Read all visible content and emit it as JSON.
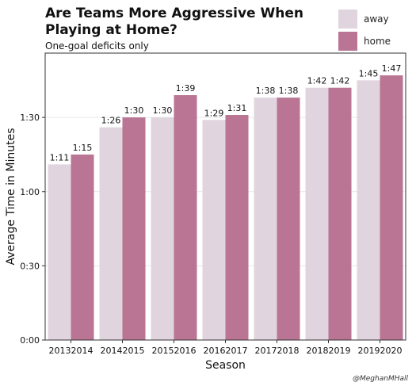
{
  "credit": "@MeghanMHall",
  "colors": {
    "away": "#e0d5df",
    "home": "#b97593",
    "grid": "#e6e6e6"
  },
  "chart_data": {
    "type": "bar",
    "title": "Are Teams More Aggressive When Playing at Home?",
    "subtitle": "One-goal deficits only",
    "xlabel": "Season",
    "ylabel": "Average Time in Minutes",
    "categories": [
      "20132014",
      "20142015",
      "20152016",
      "20162017",
      "20172018",
      "20182019",
      "20192020"
    ],
    "series": [
      {
        "name": "away",
        "values": [
          71,
          86,
          90,
          89,
          98,
          102,
          105
        ],
        "labels": [
          "1:11",
          "1:26",
          "1:30",
          "1:29",
          "1:38",
          "1:42",
          "1:45"
        ]
      },
      {
        "name": "home",
        "values": [
          75,
          90,
          99,
          91,
          98,
          102,
          107
        ],
        "labels": [
          "1:15",
          "1:30",
          "1:39",
          "1:31",
          "1:38",
          "1:42",
          "1:47"
        ]
      }
    ],
    "ylim": [
      0,
      116
    ],
    "yticks": [
      0,
      30,
      60,
      90
    ],
    "ytick_labels": [
      "0:00",
      "0:30",
      "1:00",
      "1:30"
    ],
    "grid": true,
    "legend": "top-right"
  }
}
